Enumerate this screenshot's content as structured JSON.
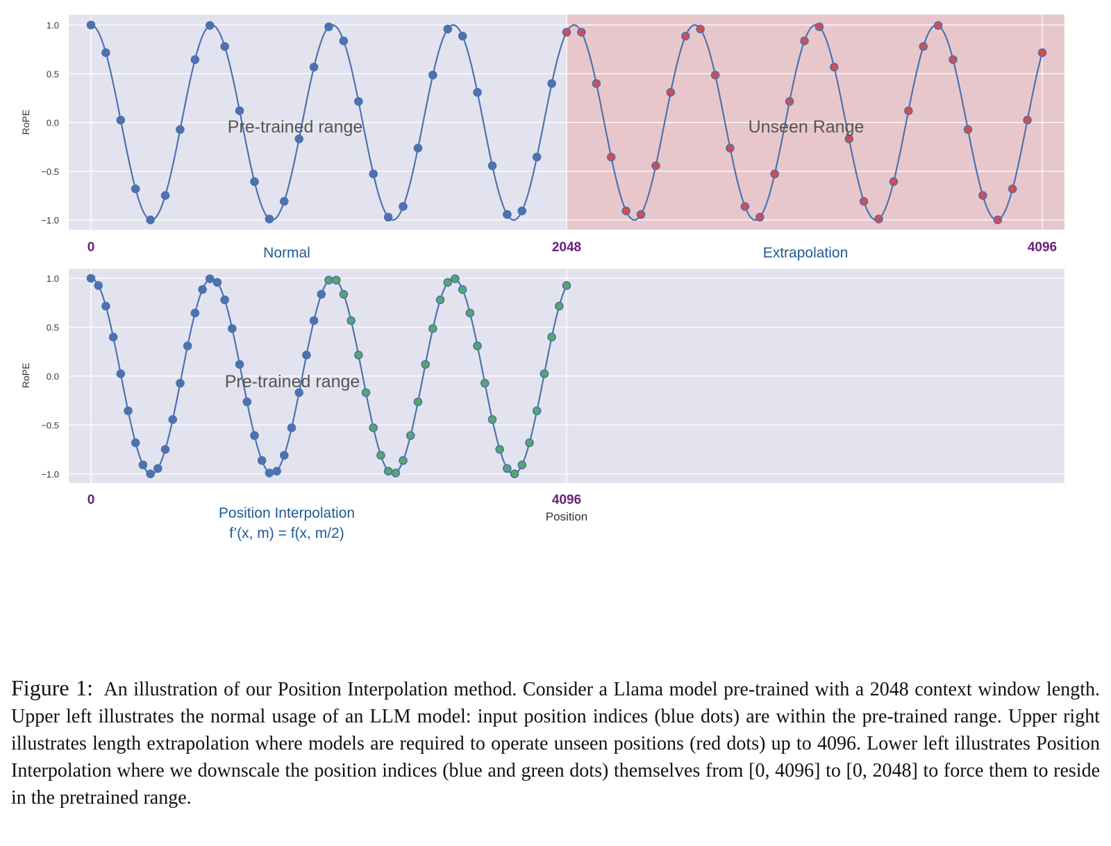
{
  "chart_data": [
    {
      "type": "line",
      "series": [
        {
          "role": "curve",
          "function": "cos",
          "x": [
            0,
            4096
          ],
          "period": 520
        },
        {
          "role": "pretrained-dots",
          "color": "#4c72b0",
          "dot_spacing": 64,
          "x_range": [
            0,
            2048
          ]
        },
        {
          "role": "unseen-dots",
          "color": "#d44c4c",
          "dot_spacing": 64,
          "x_range": [
            2048,
            4096
          ]
        }
      ],
      "regions": [
        {
          "label": "Pre-trained range",
          "x": [
            0,
            2048
          ],
          "color": "#e3e3ef"
        },
        {
          "label": "Unseen Range",
          "x": [
            2048,
            4096
          ],
          "color": "#e8c7cc"
        }
      ],
      "ylabel": "RoPE",
      "ylim": [
        -1.0,
        1.0
      ],
      "yticks": [
        "1.0",
        "0.5",
        "0.0",
        "−0.5",
        "−1.0"
      ],
      "ytick_values": [
        1.0,
        0.5,
        0.0,
        -0.5,
        -1.0
      ],
      "xlim": [
        0,
        4096
      ],
      "grid": true,
      "xmarks": [
        {
          "x": 0,
          "label": "0"
        },
        {
          "x": 2048,
          "label": "2048"
        },
        {
          "x": 4096,
          "label": "4096"
        }
      ],
      "modes": [
        {
          "label": "Normal",
          "x": 850
        },
        {
          "label": "Extrapolation",
          "x": 3100
        }
      ]
    },
    {
      "type": "line",
      "series": [
        {
          "role": "curve",
          "function": "cos",
          "x": [
            0,
            2048
          ],
          "period": 520
        },
        {
          "role": "interpolated-dots-first-half",
          "color": "#4c72b0",
          "dot_spacing": 32,
          "x_range": [
            0,
            1024
          ]
        },
        {
          "role": "interpolated-dots-second-half",
          "color": "#55a868",
          "dot_spacing": 32,
          "x_range": [
            1024,
            2048
          ]
        }
      ],
      "regions": [
        {
          "label": "Pre-trained range",
          "x": [
            0,
            2048
          ],
          "color": "#e3e3ef"
        }
      ],
      "ylabel": "RoPE",
      "ylim": [
        -1.0,
        1.0
      ],
      "yticks": [
        "1.0",
        "0.5",
        "0.0",
        "−0.5",
        "−1.0"
      ],
      "ytick_values": [
        1.0,
        0.5,
        0.0,
        -0.5,
        -1.0
      ],
      "xlim": [
        0,
        4096
      ],
      "grid": true,
      "xmarks": [
        {
          "x": 0,
          "label": "0"
        },
        {
          "x": 2048,
          "label": "4096"
        }
      ],
      "xlabel": "Position",
      "modes": [
        {
          "label": "Position Interpolation",
          "x": 850
        },
        {
          "label": "f’(x, m) = f(x, m/2)",
          "x": 850
        }
      ]
    }
  ],
  "caption": {
    "label": "Figure 1:",
    "text": "An illustration of our Position Interpolation method. Consider a Llama model pre-trained with a 2048 context window length. Upper left illustrates the normal usage of an LLM model: input position indices (blue dots) are within the pre-trained range. Upper right illustrates length extrapolation where models are required to operate unseen positions (red dots) up to 4096. Lower left illustrates Position Interpolation where we downscale the position indices (blue and green dots) themselves from [0, 4096] to [0, 2048] to force them to reside in the pretrained range."
  }
}
